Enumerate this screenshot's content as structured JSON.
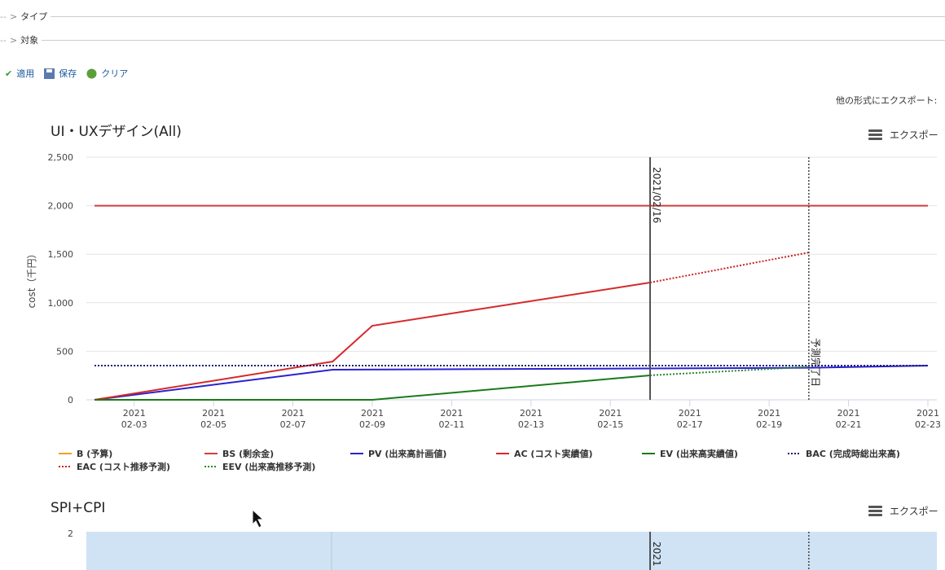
{
  "filters": {
    "type": "タイプ",
    "target": "対象"
  },
  "toolbar": {
    "apply": "適用",
    "save": "保存",
    "clear": "クリア",
    "export_other": "他の形式にエクスポート:"
  },
  "chart_data": [
    {
      "type": "line",
      "title": "UI・UXデザイン(All)",
      "export": "エクスポー",
      "y_label": "cost（千円）",
      "xlim": [
        "2021-02-02",
        "2021-02-23"
      ],
      "xticks": [
        {
          "value": "2021-02-03",
          "label": [
            "2021",
            "02-03"
          ]
        },
        {
          "value": "2021-02-05",
          "label": [
            "2021",
            "02-05"
          ]
        },
        {
          "value": "2021-02-07",
          "label": [
            "2021",
            "02-07"
          ]
        },
        {
          "value": "2021-02-09",
          "label": [
            "2021",
            "02-09"
          ]
        },
        {
          "value": "2021-02-11",
          "label": [
            "2021",
            "02-11"
          ]
        },
        {
          "value": "2021-02-13",
          "label": [
            "2021",
            "02-13"
          ]
        },
        {
          "value": "2021-02-15",
          "label": [
            "2021",
            "02-15"
          ]
        },
        {
          "value": "2021-02-17",
          "label": [
            "2021",
            "02-17"
          ]
        },
        {
          "value": "2021-02-19",
          "label": [
            "2021",
            "02-19"
          ]
        },
        {
          "value": "2021-02-21",
          "label": [
            "2021",
            "02-21"
          ]
        },
        {
          "value": "2021-02-23",
          "label": [
            "2021",
            "02-23"
          ]
        }
      ],
      "ylim": [
        0,
        2500
      ],
      "yticks": [
        0,
        500,
        {
          "value": 1000,
          "label": "1,000"
        },
        {
          "value": 1500,
          "label": "1,500"
        },
        {
          "value": 2000,
          "label": "2,000"
        },
        {
          "value": 2500,
          "label": "2,500"
        }
      ],
      "grid": true,
      "markers": [
        {
          "x": "2021-02-16",
          "label": "2021/02/16",
          "style": "solid"
        },
        {
          "x": "2021-02-20",
          "label": "予測完了日",
          "style": "dotted"
        }
      ],
      "series": [
        {
          "name": "B (予算)",
          "color": "#f0a020"
        },
        {
          "name": "BS (剰余金)",
          "color": "#d43c3c",
          "x": [
            "2021-02-02",
            "2021-02-23"
          ],
          "values": [
            2000,
            2000
          ]
        },
        {
          "name": "PV (出来高計画値)",
          "color": "#2a22cc",
          "x": [
            "2021-02-02",
            "2021-02-08",
            "2021-02-20",
            "2021-02-23"
          ],
          "values": [
            0,
            310,
            330,
            352
          ]
        },
        {
          "name": "AC (コスト実績値)",
          "color": "#d42a2a",
          "x": [
            "2021-02-02",
            "2021-02-08",
            "2021-02-09",
            "2021-02-16"
          ],
          "values": [
            0,
            394,
            763,
            1208
          ]
        },
        {
          "name": "EV (出来高実績値)",
          "color": "#1a7a1a",
          "x": [
            "2021-02-02",
            "2021-02-09",
            "2021-02-16"
          ],
          "values": [
            0,
            0,
            252
          ]
        },
        {
          "name": "BAC (完成時総出来高)",
          "color": "#1c1c78",
          "dash": true,
          "x": [
            "2021-02-02",
            "2021-02-23"
          ],
          "values": [
            352,
            352
          ]
        },
        {
          "name": "EAC (コスト推移予測)",
          "color": "#c82222",
          "dash": true,
          "x": [
            "2021-02-16",
            "2021-02-20"
          ],
          "values": [
            1208,
            1518
          ]
        },
        {
          "name": "EEV (出来高推移予測)",
          "color": "#2a8a2a",
          "dash": true,
          "x": [
            "2021-02-16",
            "2021-02-20"
          ],
          "values": [
            252,
            340
          ]
        }
      ]
    },
    {
      "type": "area",
      "title": "SPI+CPI",
      "export": "エクスポー",
      "xlim": [
        "2021-02-02",
        "2021-02-23"
      ],
      "yticks": [
        2
      ],
      "markers": [
        {
          "x": "2021-02-16",
          "label": "2021",
          "style": "solid"
        },
        {
          "x": "2021-02-20",
          "style": "dotted"
        }
      ]
    }
  ]
}
